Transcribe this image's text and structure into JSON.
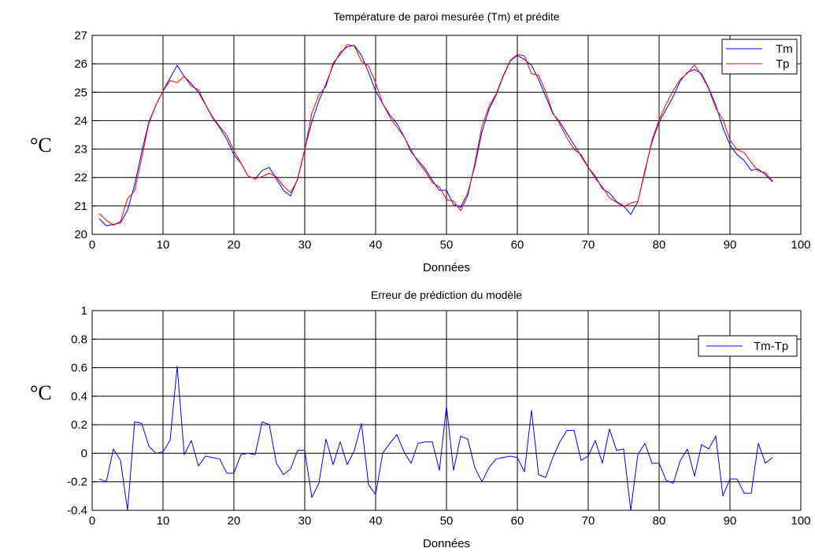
{
  "chart_data": [
    {
      "type": "line",
      "title": "Température de paroi mesurée (Tm) et prédite",
      "xlabel": "Données",
      "ylabel": "°C",
      "xlim": [
        0,
        100
      ],
      "ylim": [
        20,
        27
      ],
      "xticks": [
        0,
        10,
        20,
        30,
        40,
        50,
        60,
        70,
        80,
        90,
        100
      ],
      "yticks": [
        20,
        21,
        22,
        23,
        24,
        25,
        26,
        27
      ],
      "grid": true,
      "legend": "top-right",
      "x_start": 1,
      "series": [
        {
          "name": "Tm",
          "color": "#0000ff",
          "values": [
            20.55,
            20.3,
            20.35,
            20.4,
            20.85,
            21.75,
            22.9,
            23.95,
            24.55,
            25.05,
            25.5,
            25.95,
            25.55,
            25.3,
            25.0,
            24.55,
            24.1,
            23.75,
            23.35,
            22.8,
            22.5,
            22.05,
            21.95,
            22.25,
            22.35,
            21.95,
            21.55,
            21.35,
            21.95,
            23.0,
            23.95,
            24.7,
            25.3,
            25.95,
            26.4,
            26.6,
            26.65,
            26.3,
            25.7,
            25.05,
            24.6,
            24.2,
            23.9,
            23.45,
            22.9,
            22.6,
            22.3,
            21.9,
            21.55,
            21.55,
            21.05,
            20.95,
            21.45,
            22.4,
            23.6,
            24.4,
            24.9,
            25.55,
            26.1,
            26.3,
            26.15,
            25.95,
            25.45,
            24.85,
            24.25,
            23.95,
            23.55,
            23.15,
            22.75,
            22.35,
            22.05,
            21.6,
            21.45,
            21.15,
            21.0,
            20.7,
            21.15,
            22.25,
            23.25,
            23.95,
            24.4,
            24.85,
            25.4,
            25.7,
            25.8,
            25.65,
            25.15,
            24.55,
            23.75,
            23.15,
            22.8,
            22.6,
            22.25,
            22.3,
            22.1,
            21.85
          ]
        },
        {
          "name": "Tp",
          "color": "#ff0000",
          "values": [
            20.73,
            20.5,
            20.32,
            20.45,
            21.25,
            21.53,
            22.69,
            23.9,
            24.55,
            25.04,
            25.41,
            25.34,
            25.56,
            25.21,
            25.09,
            24.57,
            24.13,
            23.79,
            23.49,
            22.94,
            22.51,
            22.05,
            21.96,
            22.03,
            22.15,
            22.02,
            21.7,
            21.46,
            21.93,
            22.98,
            24.26,
            24.91,
            25.2,
            26.03,
            26.32,
            26.68,
            26.63,
            26.09,
            25.92,
            25.34,
            24.6,
            24.13,
            23.77,
            23.44,
            22.97,
            22.53,
            22.22,
            21.82,
            21.67,
            21.22,
            21.17,
            20.83,
            21.35,
            22.5,
            23.8,
            24.5,
            24.94,
            25.58,
            26.12,
            26.33,
            26.28,
            25.65,
            25.6,
            25.02,
            24.28,
            23.87,
            23.39,
            22.99,
            22.8,
            22.37,
            21.96,
            21.67,
            21.28,
            21.13,
            20.97,
            21.1,
            21.16,
            22.18,
            23.32,
            24.02,
            24.59,
            25.06,
            25.45,
            25.67,
            25.96,
            25.59,
            25.12,
            24.43,
            24.05,
            23.33,
            22.98,
            22.88,
            22.53,
            22.23,
            22.17,
            21.88
          ]
        }
      ]
    },
    {
      "type": "line",
      "title": "Erreur de prédiction du modèle",
      "xlabel": "Données",
      "ylabel": "°C",
      "xlim": [
        0,
        100
      ],
      "ylim": [
        -0.4,
        1
      ],
      "xticks": [
        0,
        10,
        20,
        30,
        40,
        50,
        60,
        70,
        80,
        90,
        100
      ],
      "yticks": [
        -0.4,
        -0.2,
        0,
        0.2,
        0.4,
        0.6,
        0.8,
        1
      ],
      "ytick_labels": [
        "-0.4",
        "-0.2",
        "0",
        "0.2",
        "0.4",
        "0.6",
        "0.8",
        "1"
      ],
      "grid": true,
      "legend": "top-right",
      "x_start": 1,
      "series": [
        {
          "name": "Tm-Tp",
          "color": "#0000ff",
          "values": [
            -0.18,
            -0.2,
            0.03,
            -0.05,
            -0.4,
            0.22,
            0.21,
            0.05,
            0.0,
            0.01,
            0.09,
            0.61,
            -0.01,
            0.09,
            -0.09,
            -0.02,
            -0.03,
            -0.04,
            -0.14,
            -0.14,
            -0.01,
            0.0,
            -0.01,
            0.22,
            0.2,
            -0.07,
            -0.15,
            -0.11,
            0.02,
            0.02,
            -0.31,
            -0.21,
            0.1,
            -0.08,
            0.08,
            -0.08,
            0.02,
            0.21,
            -0.22,
            -0.29,
            0.0,
            0.07,
            0.13,
            0.01,
            -0.07,
            0.07,
            0.08,
            0.08,
            -0.12,
            0.33,
            -0.12,
            0.12,
            0.1,
            -0.1,
            -0.2,
            -0.1,
            -0.04,
            -0.03,
            -0.02,
            -0.03,
            -0.13,
            0.3,
            -0.15,
            -0.17,
            -0.03,
            0.08,
            0.16,
            0.16,
            -0.05,
            -0.02,
            0.09,
            -0.07,
            0.17,
            0.02,
            0.03,
            -0.4,
            -0.01,
            0.07,
            -0.07,
            -0.07,
            -0.19,
            -0.21,
            -0.05,
            0.03,
            -0.16,
            0.06,
            0.03,
            0.12,
            -0.3,
            -0.18,
            -0.18,
            -0.28,
            -0.28,
            0.07,
            -0.07,
            -0.03
          ]
        }
      ]
    }
  ]
}
